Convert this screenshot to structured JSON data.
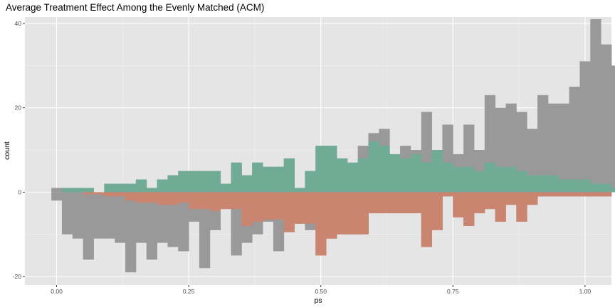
{
  "chart_data": {
    "type": "bar",
    "title": "Average Treatment Effect Among the Evenly Matched (ACM)",
    "xlabel": "ps",
    "ylabel": "count",
    "xlim": [
      -0.06,
      1.05
    ],
    "ylim": [
      -22,
      41.5
    ],
    "bin_width": 0.02,
    "bin_start": -0.01,
    "x_ticks": [
      0.0,
      0.25,
      0.5,
      0.75,
      1.0
    ],
    "x_tick_labels": [
      "0.00",
      "0.25",
      "0.50",
      "0.75",
      "1.00"
    ],
    "y_ticks": [
      -20,
      0,
      20,
      40
    ],
    "y_tick_labels": [
      "-20",
      "0",
      "20",
      "40"
    ],
    "grid": true,
    "legend": "none",
    "colors": {
      "panel": "#e5e5e5",
      "grid_major": "#ffffff",
      "grid_minor": "#f2f2f2",
      "full_sample": "#999999",
      "treated_weighted": "#70ab96",
      "control_weighted": "#ca8570"
    },
    "series": [
      {
        "role": "treated_full",
        "color_key": "full_sample",
        "values": [
          1,
          1,
          1,
          1,
          0,
          2,
          2,
          2,
          3,
          1,
          3,
          4,
          5,
          5,
          5,
          5,
          2,
          7,
          4,
          7,
          6,
          6,
          8,
          1,
          5,
          11,
          11,
          8,
          7,
          11,
          14,
          15,
          9,
          11,
          10,
          19,
          10,
          16,
          9,
          16,
          10,
          23,
          20,
          21,
          19,
          15,
          23,
          21,
          21,
          25,
          31,
          41,
          35,
          30
        ]
      },
      {
        "role": "control_full",
        "color_key": "full_sample",
        "values": [
          -2,
          -10,
          -11,
          -16,
          -11,
          -11,
          -12,
          -19,
          -12,
          -16,
          -12,
          -13,
          -14,
          -7,
          -18,
          -9,
          -4,
          -15,
          -12,
          -10,
          -7,
          -14,
          -8,
          -7,
          -9,
          -15,
          -11,
          -10,
          -10,
          -10,
          -5,
          -5,
          -5,
          -5,
          -5,
          -13,
          -9,
          -1,
          -6,
          -8,
          -5,
          -4,
          -7,
          -3,
          -7,
          -3,
          -1,
          -1,
          -1,
          -1,
          -1,
          -1,
          -1,
          0
        ]
      },
      {
        "role": "treated_weighted",
        "color_key": "treated_weighted",
        "values": [
          0,
          1,
          1,
          1,
          0,
          2,
          2,
          2,
          3,
          1,
          3,
          4,
          5,
          5,
          5,
          5,
          2,
          7,
          4,
          7,
          6,
          6,
          8,
          1,
          5,
          11,
          11,
          8,
          7,
          8,
          12,
          11,
          9,
          8,
          9,
          7,
          10,
          7,
          6,
          6,
          5,
          7,
          6,
          6,
          5,
          4,
          4,
          4,
          3,
          3,
          3,
          2,
          2,
          1
        ]
      },
      {
        "role": "control_weighted",
        "color_key": "control_weighted",
        "values": [
          0,
          0,
          0,
          -0.5,
          -0.5,
          -1,
          -1,
          -2,
          -2.5,
          -2.5,
          -3,
          -3,
          -2.5,
          -4,
          -4,
          -4.5,
          -4,
          -4,
          -8,
          -7,
          -6.5,
          -6.5,
          -9.5,
          -7.5,
          -7.5,
          -15,
          -11,
          -10,
          -10,
          -10,
          -5,
          -5,
          -5,
          -5,
          -5,
          -13,
          -9,
          -1,
          -6,
          -8,
          -5,
          -4,
          -7,
          -3,
          -7,
          -3,
          -1,
          -1,
          -1,
          -1,
          -1,
          -1,
          -1,
          0
        ]
      }
    ]
  }
}
